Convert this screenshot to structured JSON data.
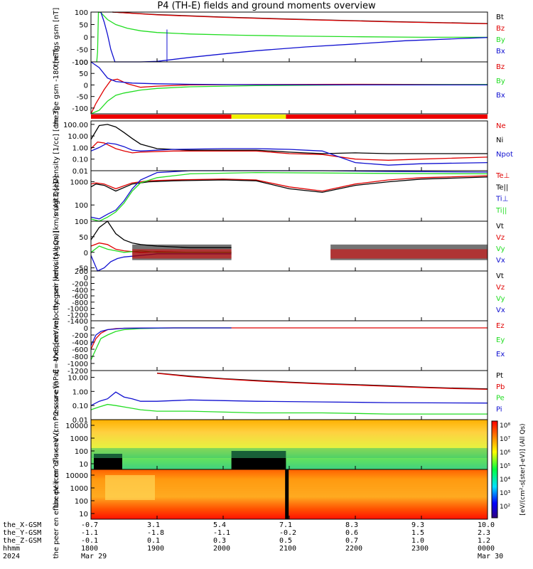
{
  "title": "P4 (TH-E) fields and ground moments overview",
  "colors": {
    "black": "#000000",
    "red": "#e00000",
    "green": "#22dd22",
    "blue": "#1010d0",
    "yellow": "#f0f000",
    "orbit_red": "#ee0000"
  },
  "chart_data": [
    {
      "type": "line",
      "id": "fgs",
      "ylabel": "the fgs gsm [nT]",
      "ylim": [
        -100,
        100
      ],
      "yticks": [
        100,
        50,
        0,
        -50,
        -100
      ],
      "legend": [
        "Bt",
        "Bz",
        "By",
        "Bx"
      ],
      "series": [
        {
          "name": "Bt",
          "color": "black",
          "t": [
            1.3,
            4,
            8,
            12,
            18,
            24
          ],
          "v": [
            100,
            90,
            80,
            72,
            62,
            54
          ]
        },
        {
          "name": "Bz",
          "color": "red",
          "t": [
            1.3,
            4,
            8,
            12,
            18,
            24
          ],
          "v": [
            100,
            89,
            79,
            71,
            61,
            53
          ]
        },
        {
          "name": "By",
          "color": "green",
          "t": [
            0.35,
            0.4,
            0.45,
            0.6,
            1.0,
            1.5,
            2.2,
            3,
            4,
            6,
            9,
            12,
            16,
            20,
            24
          ],
          "v": [
            -100,
            -60,
            100,
            98,
            70,
            50,
            35,
            25,
            18,
            12,
            7,
            4,
            1,
            -1,
            -1
          ]
        },
        {
          "name": "Bx",
          "color": "blue",
          "t": [
            0.6,
            0.8,
            1.0,
            1.2,
            1.45,
            2,
            3,
            4,
            6,
            8,
            10,
            13,
            16,
            19,
            24
          ],
          "v": [
            100,
            60,
            10,
            -50,
            -100,
            -100,
            -100,
            -98,
            -82,
            -68,
            -55,
            -40,
            -28,
            -15,
            -2
          ]
        }
      ]
    },
    {
      "type": "line",
      "id": "fge",
      "ylabel": "the fge gsm -180 [nT]",
      "ylim": [
        -125,
        100
      ],
      "yticks": [
        100,
        50,
        0,
        -50,
        -100
      ],
      "legend": [
        "Bz",
        "By",
        "Bx"
      ],
      "series": [
        {
          "name": "Bz",
          "color": "red",
          "t": [
            0,
            0.3,
            0.8,
            1.2,
            1.6,
            2.2,
            3,
            4,
            6,
            10,
            16,
            24
          ],
          "v": [
            -125,
            -80,
            -20,
            20,
            25,
            5,
            -10,
            -5,
            0,
            2,
            3,
            2
          ]
        },
        {
          "name": "By",
          "color": "green",
          "t": [
            0,
            0.5,
            1,
            1.5,
            2,
            3,
            4,
            6,
            10,
            16,
            24
          ],
          "v": [
            -125,
            -110,
            -70,
            -45,
            -35,
            -22,
            -15,
            -8,
            -3,
            0,
            2
          ]
        },
        {
          "name": "Bx",
          "color": "blue",
          "t": [
            0,
            0.5,
            1,
            1.5,
            2.5,
            4,
            6,
            10,
            16,
            24
          ],
          "v": [
            100,
            75,
            30,
            15,
            8,
            5,
            3,
            1,
            0,
            0
          ]
        }
      ]
    },
    {
      "type": "line",
      "id": "density",
      "ylabel": "Density [1/cc] [cm-3]",
      "ylog": true,
      "ylim": [
        0.01,
        200
      ],
      "ytick_labels": [
        "100.00",
        "10.00",
        "1.00",
        "0.10",
        "0.01"
      ],
      "yticks": [
        100,
        10,
        1,
        0.1,
        0.01
      ],
      "legend": [
        "Ne",
        "Ni",
        "Npot"
      ],
      "series": [
        {
          "name": "Ne",
          "color": "red",
          "t": [
            0,
            0.4,
            0.8,
            1.5,
            2,
            2.5,
            3,
            5,
            8,
            10,
            12,
            14,
            16,
            18,
            20,
            24
          ],
          "v": [
            0.8,
            3.0,
            2.5,
            0.8,
            0.5,
            0.35,
            0.4,
            0.5,
            0.5,
            0.5,
            0.3,
            0.25,
            0.1,
            0.08,
            0.1,
            0.15
          ]
        },
        {
          "name": "Ni",
          "color": "black",
          "t": [
            0,
            0.5,
            1,
            1.5,
            2,
            2.5,
            3,
            4,
            6,
            8,
            10,
            12,
            14,
            16,
            18,
            20,
            24
          ],
          "v": [
            5,
            80,
            100,
            60,
            20,
            6,
            2,
            0.8,
            0.6,
            0.6,
            0.6,
            0.4,
            0.3,
            0.35,
            0.3,
            0.3,
            0.3
          ]
        },
        {
          "name": "Npot",
          "color": "blue",
          "t": [
            0,
            0.5,
            1,
            1.5,
            2,
            2.5,
            3,
            5,
            8,
            10,
            12,
            14,
            16,
            18,
            20,
            24
          ],
          "v": [
            0.5,
            1.0,
            2.5,
            2.0,
            1.2,
            0.6,
            0.5,
            0.7,
            0.8,
            0.8,
            0.7,
            0.5,
            0.05,
            0.03,
            0.04,
            0.05
          ]
        }
      ]
    },
    {
      "type": "line",
      "id": "temperature",
      "ylabel": "magt3 [eV]",
      "ylog": true,
      "ylim": [
        20,
        3000
      ],
      "ytick_labels": [
        "1000",
        "100"
      ],
      "yticks": [
        1000,
        100
      ],
      "legend": [
        "Te⊥",
        "Te||",
        "Ti⊥",
        "Ti||"
      ],
      "series": [
        {
          "name": "Te⊥",
          "color": "red",
          "t": [
            0,
            0.3,
            0.8,
            1.5,
            2.5,
            3.5,
            5,
            8,
            10,
            12,
            14,
            16,
            18,
            20,
            24
          ],
          "v": [
            800,
            900,
            800,
            500,
            900,
            1100,
            1200,
            1300,
            1200,
            600,
            400,
            800,
            1200,
            1500,
            1800
          ]
        },
        {
          "name": "Te||",
          "color": "black",
          "t": [
            0,
            0.3,
            0.8,
            1.5,
            2.5,
            3.5,
            5,
            8,
            10,
            12,
            14,
            16,
            18,
            20,
            24
          ],
          "v": [
            600,
            800,
            700,
            400,
            800,
            1000,
            1100,
            1200,
            1100,
            500,
            350,
            700,
            1000,
            1300,
            1600
          ]
        },
        {
          "name": "Ti⊥",
          "color": "blue",
          "t": [
            0,
            0.5,
            1,
            1.5,
            2,
            2.5,
            3,
            4,
            6,
            10,
            14,
            18,
            24
          ],
          "v": [
            30,
            25,
            40,
            60,
            150,
            500,
            1200,
            2500,
            3000,
            3200,
            3000,
            2800,
            2600
          ]
        },
        {
          "name": "Ti||",
          "color": "green",
          "t": [
            0,
            0.5,
            1,
            1.5,
            2,
            2.5,
            3,
            4,
            6,
            10,
            14,
            18,
            24
          ],
          "v": [
            25,
            20,
            30,
            50,
            120,
            400,
            900,
            1500,
            2200,
            2500,
            2400,
            2300,
            2200
          ]
        }
      ]
    },
    {
      "type": "line",
      "id": "velocity",
      "ylabel": "the peir velocity gsm [km/s (All Qs)]",
      "ylim": [
        -60,
        100
      ],
      "yticks": [
        100,
        50,
        0,
        -50
      ],
      "legend": [
        "Vt",
        "Vz",
        "Vy",
        "Vx"
      ],
      "gap": [
        8.5,
        14.5
      ],
      "series": [
        {
          "name": "Vt",
          "color": "black",
          "t": [
            0,
            0.5,
            1,
            1.5,
            2,
            2.5,
            3,
            4,
            6,
            8.5
          ],
          "v": [
            40,
            80,
            100,
            60,
            40,
            30,
            25,
            20,
            15,
            15
          ]
        },
        {
          "name": "Vz",
          "color": "red",
          "t": [
            0,
            0.5,
            1,
            1.5,
            2,
            3,
            4,
            6,
            8.5
          ],
          "v": [
            20,
            30,
            25,
            10,
            5,
            0,
            2,
            0,
            0
          ]
        },
        {
          "name": "Vy",
          "color": "green",
          "t": [
            0,
            0.5,
            1,
            1.5,
            2,
            3,
            4,
            6,
            8.5
          ],
          "v": [
            0,
            20,
            10,
            5,
            0,
            5,
            0,
            0,
            0
          ]
        },
        {
          "name": "Vx",
          "color": "blue",
          "t": [
            0,
            0.4,
            0.8,
            1.2,
            1.6,
            2,
            3,
            4,
            6,
            8.5
          ],
          "v": [
            -10,
            -60,
            -50,
            -30,
            -20,
            -15,
            -10,
            -5,
            -5,
            -5
          ]
        }
      ]
    },
    {
      "type": "line",
      "id": "peer_velocity",
      "ylabel": "the peer velocity gsm [km/s (All Qs)]",
      "ylim": [
        -1400,
        200
      ],
      "yticks": [
        200,
        0,
        -200,
        -400,
        -600,
        -800,
        -1000,
        -1200,
        -1400
      ],
      "legend": [
        "Vt",
        "Vz",
        "Vy",
        "Vx"
      ],
      "series": []
    },
    {
      "type": "line",
      "id": "efield",
      "ylabel": "E=-VxB [mV/m]",
      "ylim": [
        -1200,
        200
      ],
      "yticks": [
        0,
        -200,
        -400,
        -600,
        -800,
        -1000,
        -1200
      ],
      "legend": [
        "Ez",
        "Ey",
        "Ex"
      ],
      "gap": [
        8.5,
        14.5
      ],
      "series": [
        {
          "name": "Ez",
          "color": "red",
          "t": [
            0,
            0.3,
            0.6,
            1,
            1.5,
            2,
            3,
            5,
            8.5,
            14.5,
            24
          ],
          "v": [
            -600,
            -300,
            -150,
            -50,
            -20,
            -10,
            -5,
            0,
            0,
            0,
            0
          ]
        },
        {
          "name": "Ey",
          "color": "green",
          "t": [
            0,
            0.3,
            0.6,
            1,
            1.5,
            2,
            3,
            5,
            8.5
          ],
          "v": [
            -900,
            -600,
            -300,
            -200,
            -100,
            -50,
            -20,
            0,
            0
          ]
        },
        {
          "name": "Ex",
          "color": "blue",
          "t": [
            0,
            0.3,
            0.6,
            1,
            1.5,
            2,
            3,
            5,
            8.5
          ],
          "v": [
            -500,
            -200,
            -100,
            -50,
            -30,
            -10,
            -5,
            0,
            0
          ]
        }
      ]
    },
    {
      "type": "line",
      "id": "pressure",
      "ylabel": "Pressure [nPa]",
      "ylog": true,
      "ylim": [
        0.01,
        30
      ],
      "ytick_labels": [
        "10.00",
        "1.00",
        "0.10",
        "0.01"
      ],
      "yticks": [
        10,
        1,
        0.1,
        0.01
      ],
      "legend": [
        "Pt",
        "Pb",
        "Pe",
        "Pi"
      ],
      "series": [
        {
          "name": "Pt",
          "color": "black",
          "t": [
            4,
            6,
            8,
            10,
            12,
            14,
            16,
            18,
            20,
            22,
            24
          ],
          "v": [
            20,
            12,
            8,
            6,
            4.5,
            3.6,
            3,
            2.5,
            2,
            1.7,
            1.5
          ]
        },
        {
          "name": "Pb",
          "color": "red",
          "t": [
            4,
            6,
            8,
            10,
            12,
            14,
            16,
            18,
            20,
            22,
            24
          ],
          "v": [
            19,
            11,
            7.5,
            5.5,
            4.2,
            3.4,
            2.8,
            2.3,
            1.9,
            1.6,
            1.4
          ]
        },
        {
          "name": "Pe",
          "color": "green",
          "t": [
            0,
            0.5,
            1,
            1.5,
            2,
            3,
            4,
            6,
            10,
            14,
            18,
            24
          ],
          "v": [
            0.05,
            0.08,
            0.12,
            0.1,
            0.08,
            0.05,
            0.04,
            0.04,
            0.03,
            0.03,
            0.025,
            0.025
          ]
        },
        {
          "name": "Pi",
          "color": "blue",
          "t": [
            0,
            0.5,
            1,
            1.5,
            2,
            2.5,
            3,
            4,
            6,
            10,
            14,
            18,
            24
          ],
          "v": [
            0.1,
            0.2,
            0.3,
            0.9,
            0.4,
            0.3,
            0.2,
            0.2,
            0.25,
            0.2,
            0.18,
            0.16,
            0.15
          ]
        }
      ]
    },
    {
      "type": "heatmap",
      "id": "ion_spectrogram",
      "ylabel": "the peir en eflux eV (cm^2-s-sr-eV)",
      "ytick_labels": [
        "10000",
        "1000",
        "100",
        "10"
      ]
    },
    {
      "type": "heatmap",
      "id": "electron_spectrogram",
      "ylabel": "the peer en eflux eV (cm^2-s-sr-eV)",
      "ytick_labels": [
        "10000",
        "1000",
        "100",
        "10"
      ]
    }
  ],
  "colorbar": {
    "labels": [
      "10⁸",
      "10⁷",
      "10⁶",
      "10⁵",
      "10⁴",
      "10³",
      "10²"
    ],
    "unit": "[eV/(cm²-s[ster]-eV)] (All Qs)"
  },
  "orbit_bar": {
    "segments": [
      {
        "from": 0,
        "to": 8.5,
        "color": "orbit_red"
      },
      {
        "from": 8.5,
        "to": 11.8,
        "color": "yellow"
      },
      {
        "from": 11.8,
        "to": 24,
        "color": "orbit_red"
      }
    ]
  },
  "footer": {
    "rows": [
      "the_X-GSM",
      "the_Y-GSM",
      "the_Z-GSM",
      "hhmm",
      "2024"
    ],
    "ticks": [
      {
        "vals": [
          "-0.7",
          "-1.1",
          "-0.1",
          "1800",
          "Mar 29"
        ]
      },
      {
        "vals": [
          "3.1",
          "-1.8",
          "0.1",
          "1900",
          ""
        ]
      },
      {
        "vals": [
          "5.4",
          "-1.1",
          "0.3",
          "2000",
          ""
        ]
      },
      {
        "vals": [
          "7.1",
          "-0.2",
          "0.5",
          "2100",
          ""
        ]
      },
      {
        "vals": [
          "8.3",
          "0.6",
          "0.7",
          "2200",
          ""
        ]
      },
      {
        "vals": [
          "9.3",
          "1.5",
          "1.0",
          "2300",
          ""
        ]
      },
      {
        "vals": [
          "10.0",
          "2.3",
          "1.2",
          "0000",
          "Mar 30"
        ]
      }
    ]
  }
}
